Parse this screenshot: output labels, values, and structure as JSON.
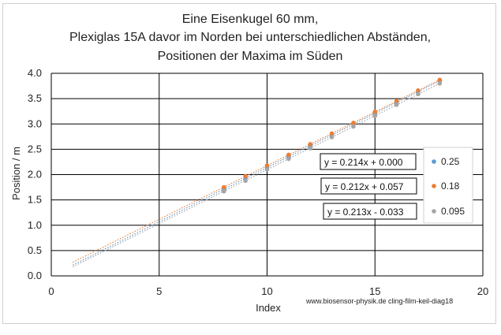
{
  "chart_data": {
    "type": "scatter",
    "title_lines": [
      "Eine Eisenkugel 60 mm,",
      "Plexiglas 15A davor im Norden bei unterschiedlichen Abständen,",
      "Positionen der Maxima im Süden"
    ],
    "xlabel": "Index",
    "ylabel": "Position / m",
    "xlim": [
      0,
      20
    ],
    "ylim": [
      0.0,
      4.0
    ],
    "x_ticks": [
      "0",
      "5",
      "10",
      "15",
      "20"
    ],
    "y_ticks": [
      "0.0",
      "0.5",
      "1.0",
      "1.5",
      "2.0",
      "2.5",
      "3.0",
      "3.5",
      "4.0"
    ],
    "grid": true,
    "legend_position": "right",
    "series": [
      {
        "name": "0.25",
        "color": "#5b9bd5",
        "x": [
          8,
          9,
          10,
          11,
          12,
          13,
          14,
          15,
          16,
          17,
          18
        ],
        "y": [
          1.71,
          1.93,
          2.14,
          2.35,
          2.57,
          2.78,
          3.0,
          3.21,
          3.42,
          3.64,
          3.85
        ],
        "trendline": {
          "slope": 0.214,
          "intercept": 0.0,
          "label": "y = 0.214x + 0.000"
        }
      },
      {
        "name": "0.18",
        "color": "#ed7d31",
        "x": [
          8,
          9,
          10,
          11,
          12,
          13,
          14,
          15,
          16,
          17,
          18
        ],
        "y": [
          1.75,
          1.97,
          2.18,
          2.39,
          2.6,
          2.81,
          3.02,
          3.24,
          3.45,
          3.66,
          3.87
        ],
        "trendline": {
          "slope": 0.212,
          "intercept": 0.057,
          "label": "y = 0.212x + 0.057"
        }
      },
      {
        "name": "0.095",
        "color": "#a5a5a5",
        "x": [
          8,
          9,
          10,
          11,
          12,
          13,
          14,
          15,
          16,
          17,
          18
        ],
        "y": [
          1.67,
          1.88,
          2.1,
          2.31,
          2.52,
          2.74,
          2.95,
          3.16,
          3.38,
          3.59,
          3.8
        ],
        "trendline": {
          "slope": 0.213,
          "intercept": -0.033,
          "label": "y = 0.213x - 0.033"
        }
      }
    ],
    "trendline_x_start": 1
  },
  "credit": "www.biosensor-physik.de  cling-film-keil-diag18"
}
